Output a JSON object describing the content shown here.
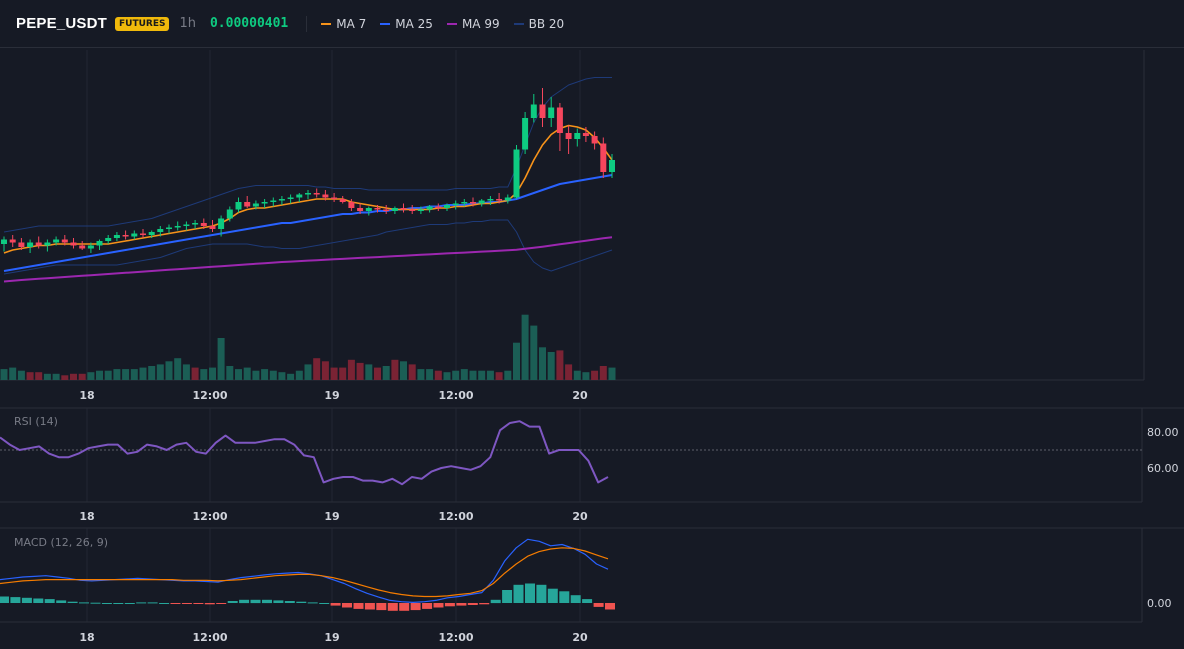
{
  "header": {
    "symbol": "PEPE_USDT",
    "badge": "FUTURES",
    "interval": "1h",
    "price": "0.00000401",
    "legend": [
      {
        "label": "MA 7",
        "color": "#f7931a"
      },
      {
        "label": "MA 25",
        "color": "#2962ff"
      },
      {
        "label": "MA 99",
        "color": "#9c27b0"
      },
      {
        "label": "BB 20",
        "color": "#1e3a78"
      }
    ]
  },
  "chart_data": [
    {
      "type": "candlestick",
      "title": "PEPE_USDT",
      "x_ticks": [
        "18",
        "12:00",
        "19",
        "12:00",
        "20"
      ],
      "candles": [
        {
          "o": 74,
          "h": 79,
          "l": 69,
          "c": 77
        },
        {
          "o": 77,
          "h": 80,
          "l": 72,
          "c": 75
        },
        {
          "o": 75,
          "h": 78,
          "l": 70,
          "c": 72
        },
        {
          "o": 72,
          "h": 77,
          "l": 68,
          "c": 75
        },
        {
          "o": 75,
          "h": 79,
          "l": 71,
          "c": 73
        },
        {
          "o": 73,
          "h": 77,
          "l": 69,
          "c": 75
        },
        {
          "o": 75,
          "h": 79,
          "l": 73,
          "c": 77
        },
        {
          "o": 77,
          "h": 80,
          "l": 73,
          "c": 75
        },
        {
          "o": 75,
          "h": 78,
          "l": 71,
          "c": 73
        },
        {
          "o": 73,
          "h": 76,
          "l": 70,
          "c": 71
        },
        {
          "o": 71,
          "h": 75,
          "l": 68,
          "c": 73
        },
        {
          "o": 73,
          "h": 77,
          "l": 70,
          "c": 76
        },
        {
          "o": 76,
          "h": 80,
          "l": 74,
          "c": 78
        },
        {
          "o": 78,
          "h": 82,
          "l": 76,
          "c": 80
        },
        {
          "o": 80,
          "h": 83,
          "l": 77,
          "c": 79
        },
        {
          "o": 79,
          "h": 83,
          "l": 77,
          "c": 81
        },
        {
          "o": 81,
          "h": 84,
          "l": 78,
          "c": 80
        },
        {
          "o": 80,
          "h": 83,
          "l": 78,
          "c": 82
        },
        {
          "o": 82,
          "h": 86,
          "l": 79,
          "c": 84
        },
        {
          "o": 84,
          "h": 87,
          "l": 81,
          "c": 85
        },
        {
          "o": 85,
          "h": 89,
          "l": 83,
          "c": 86
        },
        {
          "o": 86,
          "h": 89,
          "l": 83,
          "c": 87
        },
        {
          "o": 87,
          "h": 90,
          "l": 84,
          "c": 88
        },
        {
          "o": 88,
          "h": 91,
          "l": 84,
          "c": 86
        },
        {
          "o": 86,
          "h": 90,
          "l": 82,
          "c": 84
        },
        {
          "o": 84,
          "h": 93,
          "l": 79,
          "c": 91
        },
        {
          "o": 91,
          "h": 99,
          "l": 89,
          "c": 97
        },
        {
          "o": 97,
          "h": 105,
          "l": 95,
          "c": 102
        },
        {
          "o": 102,
          "h": 106,
          "l": 98,
          "c": 99
        },
        {
          "o": 99,
          "h": 103,
          "l": 97,
          "c": 101
        },
        {
          "o": 101,
          "h": 104,
          "l": 98,
          "c": 102
        },
        {
          "o": 102,
          "h": 105,
          "l": 99,
          "c": 103
        },
        {
          "o": 103,
          "h": 106,
          "l": 100,
          "c": 104
        },
        {
          "o": 104,
          "h": 107,
          "l": 101,
          "c": 105
        },
        {
          "o": 105,
          "h": 108,
          "l": 102,
          "c": 107
        },
        {
          "o": 107,
          "h": 110,
          "l": 104,
          "c": 108
        },
        {
          "o": 108,
          "h": 111,
          "l": 105,
          "c": 107
        },
        {
          "o": 107,
          "h": 110,
          "l": 103,
          "c": 105
        },
        {
          "o": 105,
          "h": 108,
          "l": 102,
          "c": 104
        },
        {
          "o": 104,
          "h": 106,
          "l": 101,
          "c": 102
        },
        {
          "o": 102,
          "h": 104,
          "l": 96,
          "c": 98
        },
        {
          "o": 98,
          "h": 101,
          "l": 94,
          "c": 96
        },
        {
          "o": 96,
          "h": 99,
          "l": 93,
          "c": 98
        },
        {
          "o": 98,
          "h": 100,
          "l": 95,
          "c": 97
        },
        {
          "o": 97,
          "h": 100,
          "l": 94,
          "c": 96
        },
        {
          "o": 96,
          "h": 99,
          "l": 94,
          "c": 98
        },
        {
          "o": 98,
          "h": 101,
          "l": 95,
          "c": 97
        },
        {
          "o": 97,
          "h": 100,
          "l": 94,
          "c": 96
        },
        {
          "o": 96,
          "h": 99,
          "l": 94,
          "c": 97
        },
        {
          "o": 97,
          "h": 100,
          "l": 95,
          "c": 99
        },
        {
          "o": 99,
          "h": 101,
          "l": 96,
          "c": 98
        },
        {
          "o": 98,
          "h": 101,
          "l": 96,
          "c": 100
        },
        {
          "o": 100,
          "h": 103,
          "l": 97,
          "c": 101
        },
        {
          "o": 101,
          "h": 104,
          "l": 99,
          "c": 102
        },
        {
          "o": 102,
          "h": 105,
          "l": 99,
          "c": 101
        },
        {
          "o": 101,
          "h": 104,
          "l": 99,
          "c": 103
        },
        {
          "o": 103,
          "h": 106,
          "l": 100,
          "c": 104
        },
        {
          "o": 104,
          "h": 108,
          "l": 101,
          "c": 103
        },
        {
          "o": 103,
          "h": 107,
          "l": 101,
          "c": 105
        },
        {
          "o": 105,
          "h": 140,
          "l": 104,
          "c": 137
        },
        {
          "o": 137,
          "h": 162,
          "l": 134,
          "c": 158
        },
        {
          "o": 158,
          "h": 174,
          "l": 155,
          "c": 167
        },
        {
          "o": 167,
          "h": 178,
          "l": 152,
          "c": 158
        },
        {
          "o": 158,
          "h": 172,
          "l": 152,
          "c": 165
        },
        {
          "o": 165,
          "h": 168,
          "l": 136,
          "c": 148
        },
        {
          "o": 148,
          "h": 153,
          "l": 134,
          "c": 144
        },
        {
          "o": 144,
          "h": 151,
          "l": 139,
          "c": 148
        },
        {
          "o": 148,
          "h": 152,
          "l": 142,
          "c": 146
        },
        {
          "o": 146,
          "h": 149,
          "l": 137,
          "c": 141
        },
        {
          "o": 141,
          "h": 145,
          "l": 118,
          "c": 122
        },
        {
          "o": 122,
          "h": 134,
          "l": 118,
          "c": 130
        }
      ],
      "ma7": [
        68,
        70,
        71,
        72,
        73,
        73,
        74,
        74,
        74,
        74,
        74,
        74,
        74,
        75,
        76,
        77,
        78,
        79,
        80,
        81,
        82,
        83,
        84,
        85,
        86,
        88,
        91,
        95,
        97,
        98,
        98,
        99,
        100,
        101,
        102,
        103,
        104,
        104,
        104,
        104,
        102,
        101,
        100,
        99,
        98,
        97,
        97,
        97,
        97,
        97,
        98,
        98,
        99,
        99,
        100,
        101,
        101,
        102,
        103,
        108,
        118,
        130,
        140,
        147,
        151,
        153,
        152,
        150,
        145,
        138,
        130
      ],
      "ma25": [
        56,
        57,
        58,
        59,
        60,
        61,
        62,
        63,
        64,
        65,
        66,
        67,
        68,
        69,
        70,
        71,
        72,
        73,
        74,
        75,
        76,
        77,
        78,
        79,
        80,
        81,
        82,
        83,
        84,
        85,
        86,
        87,
        88,
        88,
        89,
        90,
        91,
        92,
        93,
        94,
        94,
        95,
        95,
        96,
        96,
        97,
        97,
        98,
        98,
        99,
        99,
        100,
        100,
        100,
        101,
        101,
        102,
        102,
        103,
        104,
        106,
        108,
        110,
        112,
        114,
        115,
        116,
        117,
        118,
        119,
        120
      ],
      "ma99": [
        49,
        49.5,
        50,
        50.4,
        50.8,
        51.2,
        51.6,
        52,
        52.4,
        52.8,
        53.2,
        53.6,
        54,
        54.4,
        54.8,
        55.2,
        55.6,
        56,
        56.4,
        56.8,
        57.2,
        57.6,
        58,
        58.4,
        58.8,
        59.2,
        59.6,
        60,
        60.4,
        60.8,
        61.2,
        61.6,
        62,
        62.3,
        62.6,
        62.9,
        63.2,
        63.5,
        63.8,
        64.1,
        64.4,
        64.7,
        65,
        65.3,
        65.6,
        65.9,
        66.2,
        66.5,
        66.8,
        67.1,
        67.4,
        67.7,
        68,
        68.3,
        68.6,
        68.9,
        69.2,
        69.5,
        69.8,
        70.2,
        70.8,
        71.5,
        72.2,
        73,
        73.8,
        74.6,
        75.4,
        76.2,
        77,
        77.8,
        78.5
      ],
      "bb_upper": [
        82,
        83,
        84,
        85,
        86,
        86,
        86,
        86,
        86,
        86,
        86,
        86,
        86,
        87,
        88,
        89,
        90,
        91,
        93,
        95,
        97,
        99,
        101,
        103,
        105,
        107,
        109,
        111,
        112,
        113,
        113,
        113,
        113,
        113,
        113,
        113,
        112,
        112,
        111,
        111,
        111,
        111,
        110,
        110,
        110,
        110,
        110,
        110,
        110,
        110,
        110,
        110,
        111,
        111,
        111,
        111,
        111,
        112,
        112,
        125,
        140,
        155,
        165,
        172,
        176,
        180,
        182,
        184,
        185,
        185,
        185
      ],
      "bb_lower": [
        54,
        55,
        56,
        57,
        58,
        59,
        60,
        60,
        60,
        60,
        60,
        60,
        60,
        60,
        61,
        62,
        63,
        64,
        65,
        67,
        69,
        71,
        72,
        73,
        74,
        74,
        74,
        74,
        74,
        73,
        72,
        72,
        71,
        71,
        71,
        72,
        73,
        74,
        75,
        76,
        77,
        78,
        79,
        80,
        82,
        83,
        84,
        85,
        86,
        87,
        87,
        87,
        88,
        88,
        89,
        89,
        90,
        90,
        90,
        82,
        70,
        62,
        58,
        56,
        58,
        60,
        62,
        64,
        66,
        68,
        70
      ],
      "volume": [
        7,
        8,
        6,
        5,
        5,
        4,
        4,
        3,
        4,
        4,
        5,
        6,
        6,
        7,
        7,
        7,
        8,
        9,
        10,
        12,
        14,
        10,
        8,
        7,
        8,
        27,
        9,
        7,
        8,
        6,
        7,
        6,
        5,
        4,
        6,
        10,
        14,
        12,
        8,
        8,
        13,
        11,
        10,
        8,
        9,
        13,
        12,
        10,
        7,
        7,
        6,
        5,
        6,
        7,
        6,
        6,
        6,
        5,
        6,
        24,
        42,
        35,
        21,
        18,
        19,
        10,
        6,
        5,
        6,
        9,
        8
      ],
      "volume_up": [
        1,
        1,
        1,
        0,
        0,
        1,
        1,
        0,
        0,
        0,
        1,
        1,
        1,
        1,
        1,
        1,
        1,
        1,
        1,
        1,
        1,
        1,
        0,
        1,
        1,
        1,
        1,
        1,
        1,
        1,
        1,
        1,
        1,
        1,
        1,
        1,
        0,
        0,
        0,
        0,
        0,
        0,
        1,
        0,
        1,
        0,
        1,
        0,
        1,
        1,
        0,
        1,
        1,
        1,
        1,
        1,
        1,
        0,
        1,
        1,
        1,
        1,
        1,
        1,
        0,
        0,
        1,
        1,
        0,
        0,
        1
      ]
    },
    {
      "type": "line",
      "title": "RSI (14)",
      "y_ticks": [
        "80.00",
        "60.00"
      ],
      "ylim": [
        45,
        90
      ],
      "values": [
        77,
        73,
        70,
        71,
        72,
        68,
        66,
        66,
        68,
        71,
        72,
        73,
        73,
        68,
        69,
        73,
        72,
        70,
        73,
        74,
        69,
        68,
        74,
        78,
        74,
        74,
        74,
        75,
        76,
        76,
        73,
        67,
        66,
        52,
        54,
        55,
        55,
        53,
        53,
        52,
        54,
        51,
        55,
        54,
        58,
        60,
        61,
        60,
        59,
        61,
        66,
        81,
        85,
        86,
        83,
        83,
        68,
        70,
        70,
        70,
        64,
        52,
        55
      ]
    },
    {
      "type": "line",
      "title": "MACD (12, 26, 9)",
      "y_ticks": [
        "0.00"
      ],
      "macd": [
        3.6,
        3.8,
        4.0,
        4.1,
        4.2,
        4.0,
        3.8,
        3.5,
        3.4,
        3.5,
        3.6,
        3.7,
        3.8,
        3.7,
        3.6,
        3.5,
        3.4,
        3.4,
        3.3,
        3.2,
        3.6,
        3.9,
        4.1,
        4.3,
        4.5,
        4.6,
        4.7,
        4.5,
        4.2,
        3.6,
        3.0,
        2.2,
        1.5,
        0.9,
        0.4,
        0.2,
        0.1,
        0.2,
        0.4,
        0.8,
        1.0,
        1.3,
        1.6,
        3.5,
        6.5,
        8.5,
        9.8,
        9.5,
        8.8,
        9.0,
        8.4,
        7.5,
        6.0,
        5.2
      ],
      "signal": [
        3.0,
        3.2,
        3.4,
        3.5,
        3.6,
        3.6,
        3.6,
        3.6,
        3.6,
        3.6,
        3.6,
        3.6,
        3.6,
        3.6,
        3.6,
        3.6,
        3.5,
        3.5,
        3.5,
        3.4,
        3.5,
        3.6,
        3.8,
        4.0,
        4.2,
        4.3,
        4.4,
        4.4,
        4.2,
        3.9,
        3.5,
        3.0,
        2.5,
        2.0,
        1.6,
        1.3,
        1.1,
        1.0,
        1.0,
        1.1,
        1.3,
        1.5,
        1.9,
        3.0,
        4.6,
        6.0,
        7.2,
        7.9,
        8.3,
        8.5,
        8.4,
        8.0,
        7.4,
        6.8
      ],
      "histogram": [
        1.0,
        0.9,
        0.8,
        0.7,
        0.6,
        0.4,
        0.2,
        0.1,
        0.05,
        0.0,
        0.0,
        0.0,
        0.1,
        0.1,
        0.0,
        -0.05,
        -0.1,
        -0.15,
        -0.2,
        -0.1,
        0.3,
        0.5,
        0.5,
        0.5,
        0.4,
        0.3,
        0.2,
        0.1,
        0.0,
        -0.4,
        -0.7,
        -0.9,
        -1.0,
        -1.1,
        -1.2,
        -1.2,
        -1.1,
        -0.9,
        -0.7,
        -0.5,
        -0.4,
        -0.3,
        -0.2,
        0.5,
        2.0,
        2.8,
        3.0,
        2.8,
        2.2,
        1.8,
        1.2,
        0.6,
        -0.6,
        -1.0
      ]
    }
  ]
}
